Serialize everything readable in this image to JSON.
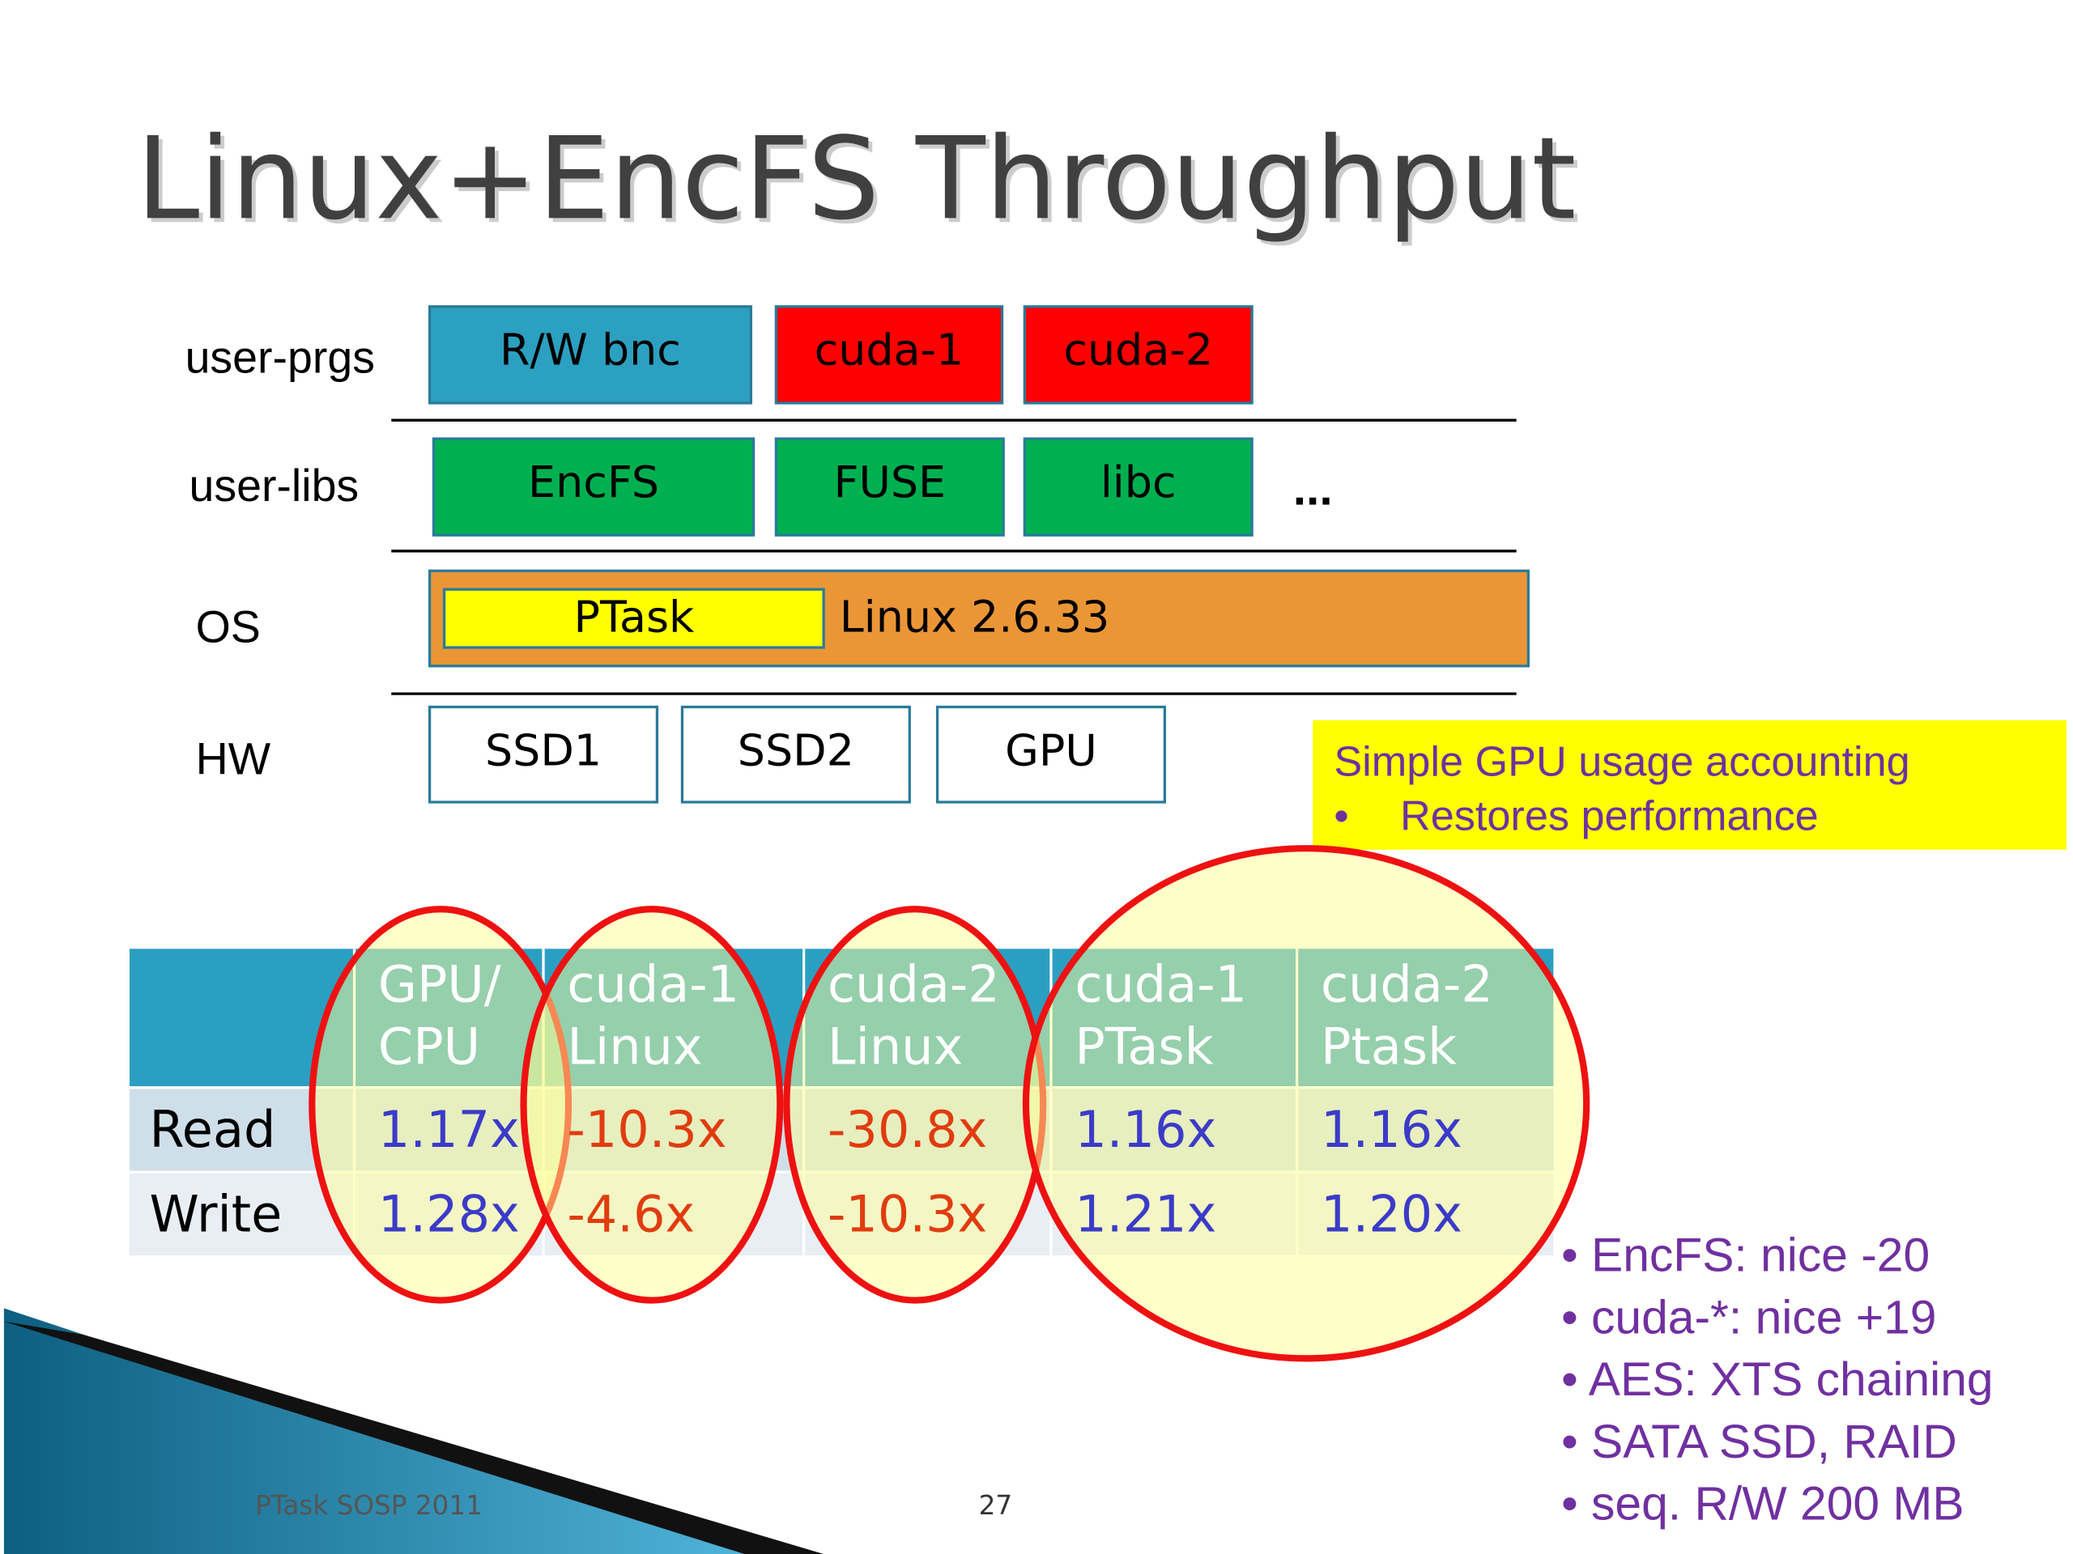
{
  "title": "Linux+EncFS Throughput",
  "stack": {
    "layers": [
      {
        "label": "user-prgs",
        "boxes": [
          "R/W bnc",
          "cuda-1",
          "cuda-2"
        ]
      },
      {
        "label": "user-libs",
        "boxes": [
          "EncFS",
          "FUSE",
          "libc"
        ],
        "more": "..."
      },
      {
        "label": "OS",
        "boxes": [
          "PTask",
          "Linux 2.6.33"
        ]
      },
      {
        "label": "HW",
        "boxes": [
          "SSD1",
          "SSD2",
          "GPU"
        ]
      }
    ]
  },
  "callout": {
    "title": "Simple GPU usage accounting",
    "bullet": "•",
    "item": "Restores performance"
  },
  "table": {
    "header": [
      [
        "GPU/",
        "CPU"
      ],
      [
        "cuda-1",
        "Linux"
      ],
      [
        "cuda-2",
        "Linux"
      ],
      [
        "cuda-1",
        "PTask"
      ],
      [
        "cuda-2",
        "Ptask"
      ]
    ],
    "rows": [
      [
        "Read",
        "1.17x",
        "-10.3x",
        "-30.8x",
        "1.16x",
        "1.16x"
      ],
      [
        "Write",
        "1.28x",
        "-4.6x",
        "-10.3x",
        "1.21x",
        "1.20x"
      ]
    ]
  },
  "notes": [
    "• EncFS: nice -20",
    "• cuda-*: nice +19",
    "• AES: XTS chaining",
    "• SATA SSD, RAID",
    "• seq. R/W 200 MB"
  ],
  "footer": {
    "left": "PTask SOSP 2011",
    "page": "27"
  }
}
